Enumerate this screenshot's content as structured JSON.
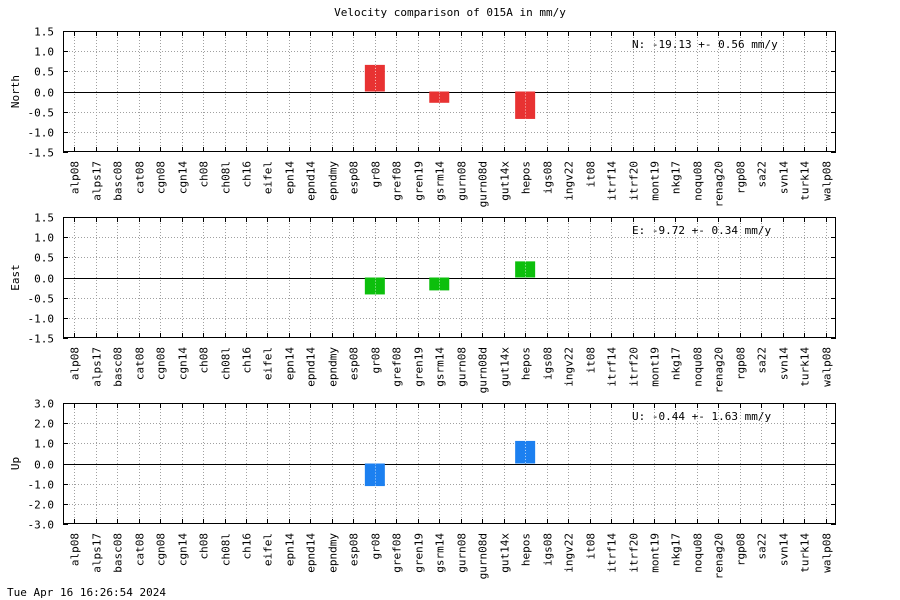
{
  "title": "Velocity comparison of 015A in mm/y",
  "timestamp": "Tue Apr 16 16:26:54 2024",
  "colors": {
    "north": "#e83232",
    "east": "#0cbf0c",
    "up": "#1c80f0"
  },
  "chart_data": [
    {
      "type": "bar",
      "ylabel": "North",
      "ylim": [
        -1.5,
        1.5
      ],
      "yticks": [
        "1.5",
        "1.0",
        "0.5",
        "0.0",
        "-0.5",
        "-1.0",
        "-1.5"
      ],
      "ytick_values": [
        1.5,
        1.0,
        0.5,
        0.0,
        -0.5,
        -1.0,
        -1.5
      ],
      "annotation": "N: -19.13 +-  0.56 mm/y",
      "grid": true,
      "categories": [
        "alp08",
        "alps17",
        "basc08",
        "cat08",
        "cgn08",
        "cgn14",
        "ch08",
        "ch08l",
        "ch16",
        "eifel",
        "epn14",
        "epnd14",
        "epndmy",
        "esp08",
        "gr08",
        "gref08",
        "gren19",
        "gsrm14",
        "gurn08",
        "gurn08d",
        "gut14x",
        "hepos",
        "igs08",
        "ingv22",
        "it08",
        "itrf14",
        "itrf20",
        "mont19",
        "nkg17",
        "noqu08",
        "renag20",
        "rgp08",
        "sa22",
        "svn14",
        "turk14",
        "walp08"
      ],
      "values": [
        null,
        null,
        null,
        null,
        null,
        null,
        null,
        null,
        null,
        null,
        null,
        null,
        null,
        null,
        0.66,
        null,
        null,
        -0.28,
        null,
        null,
        null,
        -0.68,
        null,
        null,
        null,
        null,
        null,
        null,
        null,
        null,
        null,
        null,
        null,
        null,
        null,
        null
      ]
    },
    {
      "type": "bar",
      "ylabel": "East",
      "ylim": [
        -1.5,
        1.5
      ],
      "yticks": [
        "1.5",
        "1.0",
        "0.5",
        "0.0",
        "-0.5",
        "-1.0",
        "-1.5"
      ],
      "ytick_values": [
        1.5,
        1.0,
        0.5,
        0.0,
        -0.5,
        -1.0,
        -1.5
      ],
      "annotation": "E:  -9.72 +-  0.34 mm/y",
      "grid": true,
      "categories": [
        "alp08",
        "alps17",
        "basc08",
        "cat08",
        "cgn08",
        "cgn14",
        "ch08",
        "ch08l",
        "ch16",
        "eifel",
        "epn14",
        "epnd14",
        "epndmy",
        "esp08",
        "gr08",
        "gref08",
        "gren19",
        "gsrm14",
        "gurn08",
        "gurn08d",
        "gut14x",
        "hepos",
        "igs08",
        "ingv22",
        "it08",
        "itrf14",
        "itrf20",
        "mont19",
        "nkg17",
        "noqu08",
        "renag20",
        "rgp08",
        "sa22",
        "svn14",
        "turk14",
        "walp08"
      ],
      "values": [
        null,
        null,
        null,
        null,
        null,
        null,
        null,
        null,
        null,
        null,
        null,
        null,
        null,
        null,
        -0.42,
        null,
        null,
        -0.32,
        null,
        null,
        null,
        0.4,
        null,
        null,
        null,
        null,
        null,
        null,
        null,
        null,
        null,
        null,
        null,
        null,
        null,
        null
      ]
    },
    {
      "type": "bar",
      "ylabel": "Up",
      "ylim": [
        -3.0,
        3.0
      ],
      "yticks": [
        "3.0",
        "2.0",
        "1.0",
        "0.0",
        "-1.0",
        "-2.0",
        "-3.0"
      ],
      "ytick_values": [
        3.0,
        2.0,
        1.0,
        0.0,
        -1.0,
        -2.0,
        -3.0
      ],
      "annotation": "U:  -0.44 +-  1.63 mm/y",
      "grid": true,
      "categories": [
        "alp08",
        "alps17",
        "basc08",
        "cat08",
        "cgn08",
        "cgn14",
        "ch08",
        "ch08l",
        "ch16",
        "eifel",
        "epn14",
        "epnd14",
        "epndmy",
        "esp08",
        "gr08",
        "gref08",
        "gren19",
        "gsrm14",
        "gurn08",
        "gurn08d",
        "gut14x",
        "hepos",
        "igs08",
        "ingv22",
        "it08",
        "itrf14",
        "itrf20",
        "mont19",
        "nkg17",
        "noqu08",
        "renag20",
        "rgp08",
        "sa22",
        "svn14",
        "turk14",
        "walp08"
      ],
      "values": [
        null,
        null,
        null,
        null,
        null,
        null,
        null,
        null,
        null,
        null,
        null,
        null,
        null,
        null,
        -1.12,
        null,
        null,
        null,
        null,
        null,
        null,
        1.12,
        null,
        null,
        null,
        null,
        null,
        null,
        null,
        null,
        null,
        null,
        null,
        null,
        null,
        null
      ]
    }
  ]
}
